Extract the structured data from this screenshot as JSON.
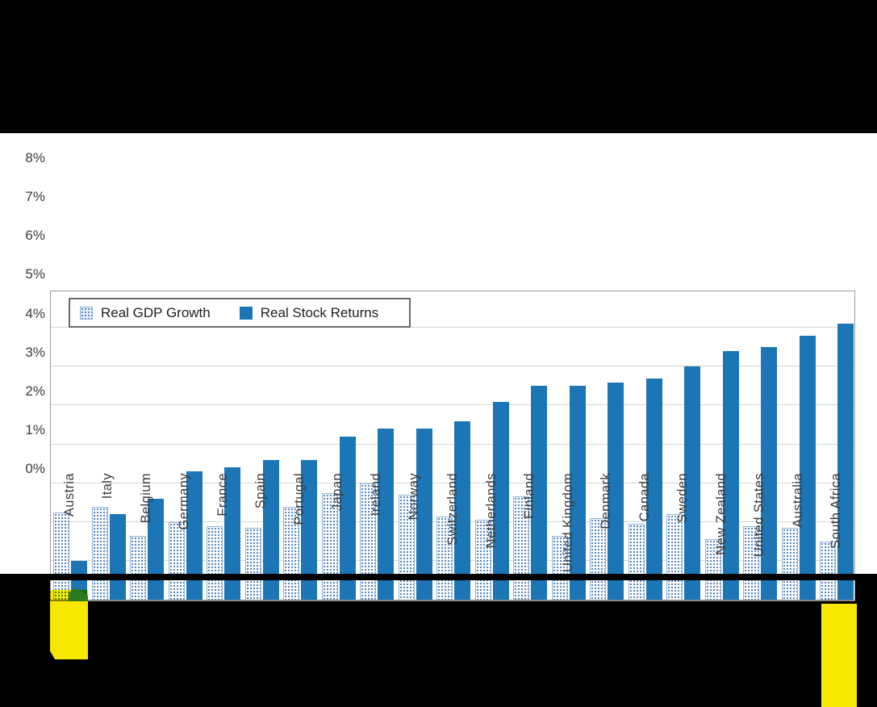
{
  "page": {
    "background": "#000000",
    "panel_background": "#ffffff"
  },
  "chart_data": {
    "type": "bar",
    "title": "",
    "xlabel": "",
    "ylabel": "",
    "ylim": [
      0,
      8
    ],
    "ytick_labels": [
      "0%",
      "1%",
      "2%",
      "3%",
      "4%",
      "5%",
      "6%",
      "7%",
      "8%"
    ],
    "grid": "horizontal",
    "legend_position": "top-left-inside",
    "categories": [
      "Austria",
      "Italy",
      "Belgium",
      "Germany",
      "France",
      "Spain",
      "Portugal",
      "Japan",
      "Ireland",
      "Norway",
      "Switzerland",
      "Netherlands",
      "Finland",
      "United Kingdom",
      "Denmark",
      "Canada",
      "Sweden",
      "New Zealand",
      "United States",
      "Australia",
      "South Africa"
    ],
    "series": [
      {
        "name": "Real GDP Growth",
        "style": "dotted",
        "values": [
          2.25,
          2.4,
          1.65,
          2.0,
          1.9,
          1.85,
          2.4,
          2.75,
          3.0,
          2.7,
          2.15,
          2.05,
          2.65,
          1.65,
          2.1,
          1.95,
          2.2,
          1.55,
          1.9,
          1.85,
          1.5
        ]
      },
      {
        "name": "Real Stock Returns",
        "style": "solid",
        "values": [
          1.0,
          2.2,
          2.6,
          3.3,
          3.4,
          3.6,
          3.6,
          4.2,
          4.4,
          4.4,
          4.6,
          5.1,
          5.5,
          5.5,
          5.6,
          5.7,
          6.0,
          6.4,
          6.5,
          6.8,
          7.1
        ]
      }
    ],
    "highlighted_categories": [
      "Austria",
      "South Africa"
    ],
    "annotations": [
      {
        "type": "highlighter-mark",
        "color": "#f6e800",
        "target": "Austria label and bar base"
      },
      {
        "type": "highlighter-mark",
        "color": "#2e7a1e",
        "target": "Austria stock bar base"
      },
      {
        "type": "highlighter-mark",
        "color": "#f6e800",
        "target": "South Africa label"
      }
    ],
    "colors": {
      "solid_bar": "#1c75b5",
      "dotted_bar_dot": "#4d7fbf",
      "dotted_bar_border": "#8fb3d8",
      "gridline": "#d6d6d6",
      "axis": "#9b9b9b",
      "tick_text": "#3a3a3a",
      "highlight_yellow": "#f6e800",
      "highlight_green": "#2e7a1e"
    }
  }
}
